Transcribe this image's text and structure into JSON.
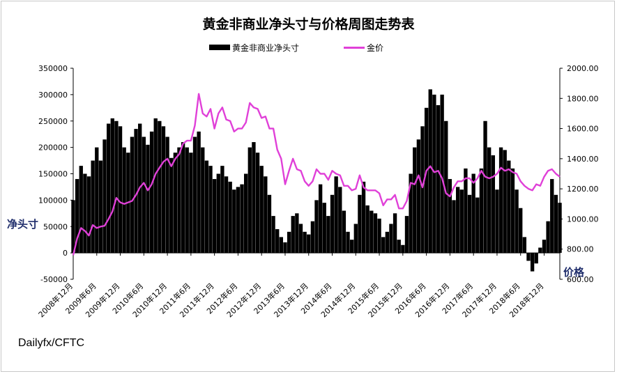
{
  "chart_data": {
    "type": "bar+line",
    "title": "黄金非商业净头寸与价格周图走势表",
    "legend": [
      "黄金非商业净头寸",
      "金价"
    ],
    "legend_position": "top",
    "ylabel_left": "净头寸",
    "ylabel_right": "价格",
    "source": "Dailyfx/CFTC",
    "left_axis": {
      "ylim": [
        -50000,
        350000
      ],
      "ticks": [
        "350000",
        "300000",
        "250000",
        "200000",
        "150000",
        "100000",
        "50000",
        "0",
        "-50000"
      ]
    },
    "right_axis": {
      "ylim": [
        600,
        2000
      ],
      "ticks": [
        "2000.00",
        "1800.00",
        "1600.00",
        "1400.00",
        "1200.00",
        "1000.00",
        "800.00",
        "600.00"
      ]
    },
    "x_ticks": [
      "2008年12月",
      "2009年6月",
      "2009年12月",
      "2010年6月",
      "2010年12月",
      "2011年6月",
      "2011年12月",
      "2012年6月",
      "2012年12月",
      "2013年6月",
      "2013年12月",
      "2014年6月",
      "2014年12月",
      "2015年6月",
      "2015年12月",
      "2016年6月",
      "2016年12月",
      "2017年6月",
      "2017年12月",
      "2018年6月",
      "2018年12月"
    ],
    "x_range": [
      "2008-12",
      "2019-04"
    ],
    "grid": false,
    "series": [
      {
        "name": "黄金非商业净头寸",
        "kind": "bar",
        "color": "#000000",
        "points": [
          [
            "2008-12",
            100000
          ],
          [
            "2009-01",
            140000
          ],
          [
            "2009-02",
            165000
          ],
          [
            "2009-03",
            150000
          ],
          [
            "2009-04",
            145000
          ],
          [
            "2009-05",
            175000
          ],
          [
            "2009-06",
            200000
          ],
          [
            "2009-07",
            175000
          ],
          [
            "2009-08",
            215000
          ],
          [
            "2009-09",
            245000
          ],
          [
            "2009-10",
            255000
          ],
          [
            "2009-11",
            250000
          ],
          [
            "2009-12",
            240000
          ],
          [
            "2010-01",
            200000
          ],
          [
            "2010-02",
            190000
          ],
          [
            "2010-03",
            220000
          ],
          [
            "2010-04",
            235000
          ],
          [
            "2010-05",
            245000
          ],
          [
            "2010-06",
            220000
          ],
          [
            "2010-07",
            205000
          ],
          [
            "2010-08",
            230000
          ],
          [
            "2010-09",
            255000
          ],
          [
            "2010-10",
            250000
          ],
          [
            "2010-11",
            240000
          ],
          [
            "2010-12",
            220000
          ],
          [
            "2011-01",
            180000
          ],
          [
            "2011-02",
            190000
          ],
          [
            "2011-03",
            200000
          ],
          [
            "2011-04",
            210000
          ],
          [
            "2011-05",
            200000
          ],
          [
            "2011-06",
            190000
          ],
          [
            "2011-07",
            220000
          ],
          [
            "2011-08",
            230000
          ],
          [
            "2011-09",
            200000
          ],
          [
            "2011-10",
            175000
          ],
          [
            "2011-11",
            165000
          ],
          [
            "2011-12",
            140000
          ],
          [
            "2012-01",
            150000
          ],
          [
            "2012-02",
            165000
          ],
          [
            "2012-03",
            145000
          ],
          [
            "2012-04",
            135000
          ],
          [
            "2012-05",
            120000
          ],
          [
            "2012-06",
            125000
          ],
          [
            "2012-07",
            130000
          ],
          [
            "2012-08",
            150000
          ],
          [
            "2012-09",
            200000
          ],
          [
            "2012-10",
            210000
          ],
          [
            "2012-11",
            190000
          ],
          [
            "2012-12",
            165000
          ],
          [
            "2013-01",
            145000
          ],
          [
            "2013-02",
            110000
          ],
          [
            "2013-03",
            70000
          ],
          [
            "2013-04",
            45000
          ],
          [
            "2013-05",
            30000
          ],
          [
            "2013-06",
            20000
          ],
          [
            "2013-07",
            40000
          ],
          [
            "2013-08",
            70000
          ],
          [
            "2013-09",
            75000
          ],
          [
            "2013-10",
            55000
          ],
          [
            "2013-11",
            40000
          ],
          [
            "2013-12",
            35000
          ],
          [
            "2014-01",
            60000
          ],
          [
            "2014-02",
            100000
          ],
          [
            "2014-03",
            130000
          ],
          [
            "2014-04",
            95000
          ],
          [
            "2014-05",
            70000
          ],
          [
            "2014-06",
            110000
          ],
          [
            "2014-07",
            145000
          ],
          [
            "2014-08",
            125000
          ],
          [
            "2014-09",
            80000
          ],
          [
            "2014-10",
            40000
          ],
          [
            "2014-11",
            25000
          ],
          [
            "2014-12",
            55000
          ],
          [
            "2015-01",
            110000
          ],
          [
            "2015-02",
            135000
          ],
          [
            "2015-03",
            90000
          ],
          [
            "2015-04",
            80000
          ],
          [
            "2015-05",
            75000
          ],
          [
            "2015-06",
            65000
          ],
          [
            "2015-07",
            30000
          ],
          [
            "2015-08",
            40000
          ],
          [
            "2015-09",
            55000
          ],
          [
            "2015-10",
            75000
          ],
          [
            "2015-11",
            25000
          ],
          [
            "2015-12",
            15000
          ],
          [
            "2016-01",
            70000
          ],
          [
            "2016-02",
            150000
          ],
          [
            "2016-03",
            200000
          ],
          [
            "2016-04",
            215000
          ],
          [
            "2016-05",
            240000
          ],
          [
            "2016-06",
            275000
          ],
          [
            "2016-07",
            310000
          ],
          [
            "2016-08",
            300000
          ],
          [
            "2016-09",
            280000
          ],
          [
            "2016-10",
            300000
          ],
          [
            "2016-11",
            250000
          ],
          [
            "2016-12",
            140000
          ],
          [
            "2017-01",
            100000
          ],
          [
            "2017-02",
            125000
          ],
          [
            "2017-03",
            120000
          ],
          [
            "2017-04",
            160000
          ],
          [
            "2017-05",
            110000
          ],
          [
            "2017-06",
            150000
          ],
          [
            "2017-07",
            105000
          ],
          [
            "2017-08",
            160000
          ],
          [
            "2017-09",
            250000
          ],
          [
            "2017-10",
            200000
          ],
          [
            "2017-11",
            185000
          ],
          [
            "2017-12",
            120000
          ],
          [
            "2018-01",
            200000
          ],
          [
            "2018-02",
            195000
          ],
          [
            "2018-03",
            175000
          ],
          [
            "2018-04",
            160000
          ],
          [
            "2018-05",
            120000
          ],
          [
            "2018-06",
            85000
          ],
          [
            "2018-07",
            30000
          ],
          [
            "2018-08",
            -15000
          ],
          [
            "2018-09",
            -35000
          ],
          [
            "2018-10",
            -20000
          ],
          [
            "2018-11",
            10000
          ],
          [
            "2018-12",
            25000
          ],
          [
            "2019-01",
            60000
          ],
          [
            "2019-02",
            140000
          ],
          [
            "2019-03",
            110000
          ],
          [
            "2019-04",
            95000
          ]
        ]
      },
      {
        "name": "金价",
        "kind": "line",
        "color": "#e040d8",
        "points": [
          [
            "2008-12",
            760
          ],
          [
            "2009-01",
            870
          ],
          [
            "2009-02",
            940
          ],
          [
            "2009-03",
            920
          ],
          [
            "2009-04",
            890
          ],
          [
            "2009-05",
            960
          ],
          [
            "2009-06",
            940
          ],
          [
            "2009-07",
            950
          ],
          [
            "2009-08",
            955
          ],
          [
            "2009-09",
            1000
          ],
          [
            "2009-10",
            1050
          ],
          [
            "2009-11",
            1140
          ],
          [
            "2009-12",
            1110
          ],
          [
            "2010-01",
            1100
          ],
          [
            "2010-02",
            1110
          ],
          [
            "2010-03",
            1120
          ],
          [
            "2010-04",
            1160
          ],
          [
            "2010-05",
            1210
          ],
          [
            "2010-06",
            1240
          ],
          [
            "2010-07",
            1190
          ],
          [
            "2010-08",
            1230
          ],
          [
            "2010-09",
            1300
          ],
          [
            "2010-10",
            1340
          ],
          [
            "2010-11",
            1380
          ],
          [
            "2010-12",
            1400
          ],
          [
            "2011-01",
            1350
          ],
          [
            "2011-02",
            1400
          ],
          [
            "2011-03",
            1430
          ],
          [
            "2011-04",
            1500
          ],
          [
            "2011-05",
            1520
          ],
          [
            "2011-06",
            1520
          ],
          [
            "2011-07",
            1620
          ],
          [
            "2011-08",
            1830
          ],
          [
            "2011-09",
            1700
          ],
          [
            "2011-10",
            1680
          ],
          [
            "2011-11",
            1730
          ],
          [
            "2011-12",
            1600
          ],
          [
            "2012-01",
            1700
          ],
          [
            "2012-02",
            1740
          ],
          [
            "2012-03",
            1660
          ],
          [
            "2012-04",
            1650
          ],
          [
            "2012-05",
            1580
          ],
          [
            "2012-06",
            1600
          ],
          [
            "2012-07",
            1600
          ],
          [
            "2012-08",
            1640
          ],
          [
            "2012-09",
            1770
          ],
          [
            "2012-10",
            1740
          ],
          [
            "2012-11",
            1730
          ],
          [
            "2012-12",
            1670
          ],
          [
            "2013-01",
            1680
          ],
          [
            "2013-02",
            1600
          ],
          [
            "2013-03",
            1600
          ],
          [
            "2013-04",
            1460
          ],
          [
            "2013-05",
            1400
          ],
          [
            "2013-06",
            1230
          ],
          [
            "2013-07",
            1320
          ],
          [
            "2013-08",
            1400
          ],
          [
            "2013-09",
            1330
          ],
          [
            "2013-10",
            1320
          ],
          [
            "2013-11",
            1250
          ],
          [
            "2013-12",
            1220
          ],
          [
            "2014-01",
            1250
          ],
          [
            "2014-02",
            1330
          ],
          [
            "2014-03",
            1300
          ],
          [
            "2014-04",
            1300
          ],
          [
            "2014-05",
            1260
          ],
          [
            "2014-06",
            1320
          ],
          [
            "2014-07",
            1300
          ],
          [
            "2014-08",
            1290
          ],
          [
            "2014-09",
            1220
          ],
          [
            "2014-10",
            1220
          ],
          [
            "2014-11",
            1190
          ],
          [
            "2014-12",
            1200
          ],
          [
            "2015-01",
            1290
          ],
          [
            "2015-02",
            1210
          ],
          [
            "2015-03",
            1190
          ],
          [
            "2015-04",
            1190
          ],
          [
            "2015-05",
            1190
          ],
          [
            "2015-06",
            1170
          ],
          [
            "2015-07",
            1090
          ],
          [
            "2015-08",
            1130
          ],
          [
            "2015-09",
            1130
          ],
          [
            "2015-10",
            1160
          ],
          [
            "2015-11",
            1070
          ],
          [
            "2015-12",
            1070
          ],
          [
            "2016-01",
            1120
          ],
          [
            "2016-02",
            1240
          ],
          [
            "2016-03",
            1230
          ],
          [
            "2016-04",
            1290
          ],
          [
            "2016-05",
            1210
          ],
          [
            "2016-06",
            1320
          ],
          [
            "2016-07",
            1350
          ],
          [
            "2016-08",
            1310
          ],
          [
            "2016-09",
            1320
          ],
          [
            "2016-10",
            1270
          ],
          [
            "2016-11",
            1170
          ],
          [
            "2016-12",
            1150
          ],
          [
            "2017-01",
            1210
          ],
          [
            "2017-02",
            1250
          ],
          [
            "2017-03",
            1250
          ],
          [
            "2017-04",
            1270
          ],
          [
            "2017-05",
            1270
          ],
          [
            "2017-06",
            1240
          ],
          [
            "2017-07",
            1270
          ],
          [
            "2017-08",
            1320
          ],
          [
            "2017-09",
            1280
          ],
          [
            "2017-10",
            1270
          ],
          [
            "2017-11",
            1280
          ],
          [
            "2017-12",
            1300
          ],
          [
            "2018-01",
            1340
          ],
          [
            "2018-02",
            1320
          ],
          [
            "2018-03",
            1330
          ],
          [
            "2018-04",
            1310
          ],
          [
            "2018-05",
            1300
          ],
          [
            "2018-06",
            1250
          ],
          [
            "2018-07",
            1220
          ],
          [
            "2018-08",
            1200
          ],
          [
            "2018-09",
            1190
          ],
          [
            "2018-10",
            1230
          ],
          [
            "2018-11",
            1220
          ],
          [
            "2018-12",
            1280
          ],
          [
            "2019-01",
            1320
          ],
          [
            "2019-02",
            1330
          ],
          [
            "2019-03",
            1300
          ],
          [
            "2019-04",
            1280
          ]
        ]
      }
    ]
  }
}
